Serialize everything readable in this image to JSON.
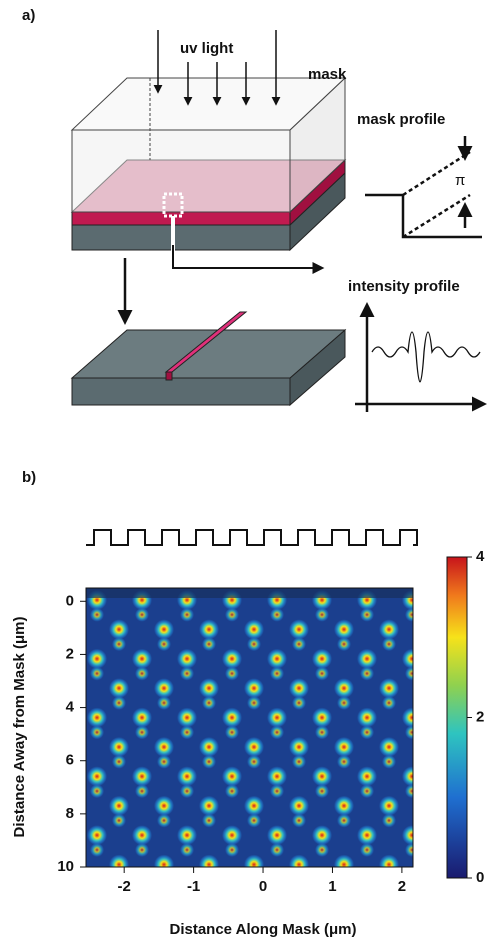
{
  "panel_a": {
    "label": "a)",
    "uv_light": "uv light",
    "mask": "mask",
    "mask_profile": "mask profile",
    "phase": "π",
    "intensity_profile": "intensity profile"
  },
  "panel_b": {
    "label": "b)"
  },
  "chart_data": {
    "type": "heatmap",
    "xlabel": "Distance Along Mask (μm)",
    "ylabel": "Distance Away from Mask (μm)",
    "xlim": [
      -2.55,
      2.16
    ],
    "xticks": [
      -2,
      -1,
      0,
      1,
      2
    ],
    "ylim": [
      -0.5,
      10
    ],
    "yticks": [
      0,
      2,
      4,
      6,
      8,
      10
    ],
    "y_inverted": true,
    "clim": [
      0,
      4
    ],
    "cticks": [
      0,
      2,
      4
    ]
  }
}
